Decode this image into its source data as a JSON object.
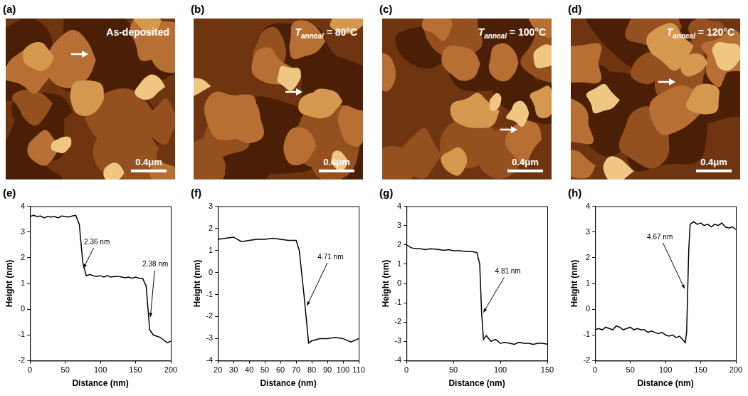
{
  "images": [
    {
      "panel": "(a)",
      "annotation": {
        "text": "As-deposited"
      },
      "scale_bar": "0.4μm"
    },
    {
      "panel": "(b)",
      "annotation": {
        "symbol": "T",
        "subscript": "anneal",
        "text": " = 80°C"
      },
      "scale_bar": "0.4μm"
    },
    {
      "panel": "(c)",
      "annotation": {
        "symbol": "T",
        "subscript": "anneal",
        "text": " = 100°C"
      },
      "scale_bar": "0.4μm"
    },
    {
      "panel": "(d)",
      "annotation": {
        "symbol": "T",
        "subscript": "anneal",
        "text": " = 120°C"
      },
      "scale_bar": "0.4μm"
    }
  ],
  "chart_data": [
    {
      "type": "line",
      "panel": "(e)",
      "x_label": "Distance (nm)",
      "y_label": "Height (nm)",
      "color": "#000000",
      "grid": false,
      "x": [
        0,
        5,
        10,
        15,
        20,
        25,
        30,
        35,
        40,
        45,
        50,
        55,
        60,
        65,
        70,
        75,
        80,
        85,
        90,
        95,
        100,
        105,
        110,
        115,
        120,
        125,
        130,
        135,
        140,
        145,
        150,
        155,
        160,
        165,
        170,
        175,
        180,
        185,
        190,
        195,
        200
      ],
      "values": [
        3.6,
        3.65,
        3.6,
        3.62,
        3.55,
        3.6,
        3.58,
        3.6,
        3.55,
        3.62,
        3.6,
        3.58,
        3.62,
        3.65,
        3.3,
        1.8,
        1.3,
        1.35,
        1.3,
        1.28,
        1.3,
        1.25,
        1.3,
        1.25,
        1.27,
        1.28,
        1.25,
        1.22,
        1.25,
        1.2,
        1.25,
        1.2,
        1.2,
        0.9,
        -0.8,
        -1.0,
        -1.05,
        -1.1,
        -1.2,
        -1.3,
        -1.25
      ],
      "xlim": [
        0,
        200
      ],
      "xticks": [
        0,
        50,
        100,
        150,
        200
      ],
      "ylim": [
        -2,
        4
      ],
      "yticks": [
        -2,
        -1,
        0,
        1,
        2,
        3,
        4
      ],
      "annotations": [
        {
          "text": "2.36 nm",
          "x": 95,
          "y": 2.6,
          "arrow_to": [
            76,
            1.6
          ]
        },
        {
          "text": "2.38 nm",
          "x": 178,
          "y": 1.75,
          "arrow_to": [
            171,
            -0.3
          ]
        }
      ]
    },
    {
      "type": "line",
      "panel": "(f)",
      "x_label": "Distance (nm)",
      "y_label": "Height (nm)",
      "color": "#000000",
      "grid": false,
      "x": [
        20,
        25,
        30,
        35,
        40,
        45,
        50,
        55,
        60,
        65,
        70,
        72,
        75,
        78,
        80,
        85,
        90,
        95,
        100,
        105,
        110
      ],
      "values": [
        1.5,
        1.55,
        1.6,
        1.4,
        1.45,
        1.5,
        1.5,
        1.55,
        1.5,
        1.45,
        1.45,
        1.0,
        -1.0,
        -3.2,
        -3.1,
        -3.0,
        -3.0,
        -2.95,
        -3.0,
        -3.15,
        -3.0
      ],
      "xlim": [
        20,
        110
      ],
      "xticks": [
        20,
        30,
        40,
        50,
        60,
        70,
        80,
        90,
        100,
        110
      ],
      "ylim": [
        -4,
        3
      ],
      "yticks": [
        -4,
        -3,
        -2,
        -1,
        0,
        1,
        2,
        3
      ],
      "annotations": [
        {
          "text": "4.71 nm",
          "x": 92,
          "y": 0.7,
          "arrow_to": [
            77,
            -1.5
          ]
        }
      ]
    },
    {
      "type": "line",
      "panel": "(g)",
      "x_label": "Distance (nm)",
      "y_label": "Height (nm)",
      "color": "#000000",
      "grid": false,
      "x": [
        0,
        5,
        10,
        15,
        20,
        25,
        30,
        35,
        40,
        45,
        50,
        55,
        60,
        65,
        70,
        75,
        78,
        80,
        82,
        85,
        90,
        95,
        100,
        105,
        110,
        115,
        120,
        125,
        130,
        135,
        140,
        145,
        150
      ],
      "values": [
        2.0,
        1.85,
        1.8,
        1.8,
        1.75,
        1.8,
        1.78,
        1.75,
        1.72,
        1.75,
        1.7,
        1.7,
        1.68,
        1.65,
        1.65,
        1.6,
        1.0,
        -1.5,
        -2.9,
        -2.7,
        -3.0,
        -2.9,
        -3.1,
        -3.05,
        -3.1,
        -3.15,
        -3.05,
        -3.1,
        -3.1,
        -3.15,
        -3.1,
        -3.1,
        -3.15
      ],
      "xlim": [
        0,
        150
      ],
      "xticks": [
        0,
        50,
        100,
        150
      ],
      "ylim": [
        -4,
        4
      ],
      "yticks": [
        -4,
        -3,
        -2,
        -1,
        0,
        1,
        2,
        3,
        4
      ],
      "annotations": [
        {
          "text": "4.81 nm",
          "x": 108,
          "y": 0.6,
          "arrow_to": [
            82,
            -1.5
          ]
        }
      ]
    },
    {
      "type": "line",
      "panel": "(h)",
      "x_label": "Distance (nm)",
      "y_label": "Height (nm)",
      "color": "#000000",
      "grid": false,
      "x": [
        0,
        5,
        10,
        15,
        20,
        25,
        30,
        35,
        40,
        45,
        50,
        55,
        60,
        65,
        70,
        75,
        80,
        85,
        90,
        95,
        100,
        105,
        110,
        115,
        120,
        125,
        128,
        130,
        133,
        135,
        140,
        145,
        150,
        155,
        160,
        165,
        170,
        175,
        180,
        185,
        190,
        195,
        200
      ],
      "values": [
        -0.8,
        -0.75,
        -0.8,
        -0.7,
        -0.75,
        -0.8,
        -0.65,
        -0.7,
        -0.8,
        -0.75,
        -0.7,
        -0.8,
        -0.75,
        -0.8,
        -0.8,
        -0.9,
        -0.85,
        -0.9,
        -0.95,
        -0.9,
        -1.0,
        -1.05,
        -1.0,
        -1.1,
        -1.05,
        -1.2,
        -1.3,
        -0.9,
        2.3,
        3.3,
        3.4,
        3.3,
        3.35,
        3.25,
        3.3,
        3.2,
        3.3,
        3.25,
        3.35,
        3.2,
        3.15,
        3.2,
        3.1
      ],
      "xlim": [
        0,
        200
      ],
      "xticks": [
        0,
        50,
        100,
        150,
        200
      ],
      "ylim": [
        -2,
        4
      ],
      "yticks": [
        -2,
        -1,
        0,
        1,
        2,
        3,
        4
      ],
      "annotations": [
        {
          "text": "4.67 nm",
          "x": 92,
          "y": 2.8,
          "arrow_to": [
            127,
            0.8
          ]
        }
      ]
    }
  ]
}
